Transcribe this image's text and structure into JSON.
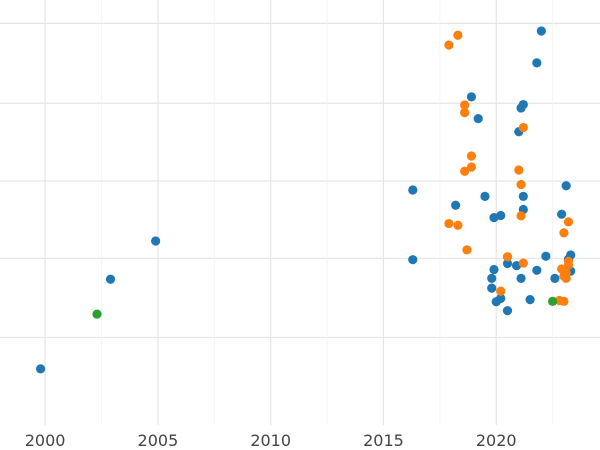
{
  "chart_data": {
    "type": "scatter",
    "title": "",
    "xlabel": "",
    "ylabel": "",
    "xlim": [
      1998,
      2024.6
    ],
    "ylim": [
      0,
      1
    ],
    "x_ticks": [
      2000,
      2005,
      2010,
      2015,
      2020
    ],
    "x_tick_labels": [
      "2000",
      "2005",
      "2010",
      "2015",
      "2020"
    ],
    "grid": true,
    "legend": "none",
    "colors": {
      "background": "#ffffff",
      "grid_major": "#e6e6e6",
      "grid_minor": "#f2f2f2",
      "tick_text": "#444444"
    },
    "series": [
      {
        "color": "#1f77b4",
        "points": [
          {
            "x": 1999.8,
            "y": 0.132
          },
          {
            "x": 2002.9,
            "y": 0.343
          },
          {
            "x": 2004.9,
            "y": 0.433
          },
          {
            "x": 2016.3,
            "y": 0.389
          },
          {
            "x": 2016.3,
            "y": 0.553
          },
          {
            "x": 2018.2,
            "y": 0.517
          },
          {
            "x": 2018.9,
            "y": 0.772
          },
          {
            "x": 2019.2,
            "y": 0.721
          },
          {
            "x": 2019.5,
            "y": 0.538
          },
          {
            "x": 2019.8,
            "y": 0.322
          },
          {
            "x": 2019.8,
            "y": 0.345
          },
          {
            "x": 2019.9,
            "y": 0.366
          },
          {
            "x": 2019.9,
            "y": 0.488
          },
          {
            "x": 2020.0,
            "y": 0.29
          },
          {
            "x": 2020.2,
            "y": 0.493
          },
          {
            "x": 2020.2,
            "y": 0.298
          },
          {
            "x": 2020.5,
            "y": 0.269
          },
          {
            "x": 2020.5,
            "y": 0.38
          },
          {
            "x": 2020.9,
            "y": 0.375
          },
          {
            "x": 2021.0,
            "y": 0.69
          },
          {
            "x": 2021.1,
            "y": 0.345
          },
          {
            "x": 2021.1,
            "y": 0.746
          },
          {
            "x": 2021.2,
            "y": 0.754
          },
          {
            "x": 2021.2,
            "y": 0.507
          },
          {
            "x": 2021.2,
            "y": 0.538
          },
          {
            "x": 2021.5,
            "y": 0.295
          },
          {
            "x": 2021.8,
            "y": 0.364
          },
          {
            "x": 2022.0,
            "y": 0.927
          },
          {
            "x": 2021.8,
            "y": 0.852
          },
          {
            "x": 2022.2,
            "y": 0.397
          },
          {
            "x": 2022.6,
            "y": 0.345
          },
          {
            "x": 2022.9,
            "y": 0.496
          },
          {
            "x": 2023.1,
            "y": 0.563
          },
          {
            "x": 2023.2,
            "y": 0.39
          },
          {
            "x": 2023.3,
            "y": 0.4
          },
          {
            "x": 2023.3,
            "y": 0.362
          }
        ]
      },
      {
        "color": "#ff7f0e",
        "points": [
          {
            "x": 2017.9,
            "y": 0.894
          },
          {
            "x": 2018.3,
            "y": 0.917
          },
          {
            "x": 2017.9,
            "y": 0.474
          },
          {
            "x": 2018.3,
            "y": 0.47
          },
          {
            "x": 2018.6,
            "y": 0.597
          },
          {
            "x": 2018.6,
            "y": 0.753
          },
          {
            "x": 2018.6,
            "y": 0.735
          },
          {
            "x": 2018.7,
            "y": 0.412
          },
          {
            "x": 2018.9,
            "y": 0.607
          },
          {
            "x": 2018.9,
            "y": 0.633
          },
          {
            "x": 2020.2,
            "y": 0.315
          },
          {
            "x": 2020.5,
            "y": 0.396
          },
          {
            "x": 2021.0,
            "y": 0.6
          },
          {
            "x": 2021.1,
            "y": 0.566
          },
          {
            "x": 2021.1,
            "y": 0.492
          },
          {
            "x": 2021.2,
            "y": 0.381
          },
          {
            "x": 2021.2,
            "y": 0.7
          },
          {
            "x": 2022.8,
            "y": 0.293
          },
          {
            "x": 2022.9,
            "y": 0.367
          },
          {
            "x": 2023.0,
            "y": 0.291
          },
          {
            "x": 2023.0,
            "y": 0.452
          },
          {
            "x": 2023.0,
            "y": 0.35
          },
          {
            "x": 2023.1,
            "y": 0.358
          },
          {
            "x": 2023.1,
            "y": 0.345
          },
          {
            "x": 2023.2,
            "y": 0.478
          },
          {
            "x": 2023.2,
            "y": 0.385
          },
          {
            "x": 2023.2,
            "y": 0.376
          }
        ]
      },
      {
        "color": "#2ca02c",
        "points": [
          {
            "x": 2002.3,
            "y": 0.261
          },
          {
            "x": 2022.5,
            "y": 0.291
          }
        ]
      }
    ]
  }
}
